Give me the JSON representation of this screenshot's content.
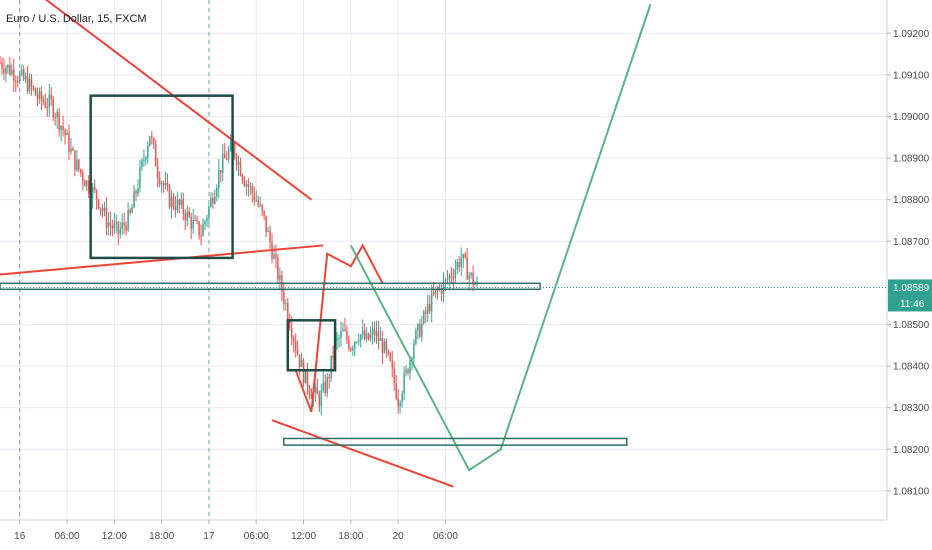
{
  "header": {
    "symbol_title": "Euro / U.S. Dollar, 15, FXCM"
  },
  "colors": {
    "background": "#ffffff",
    "grid": "#e6e9ef",
    "separator": "#6fa6a1",
    "up_candle": "#3aa897",
    "down_candle": "#ef5350",
    "drawing_red": "#ef4338",
    "drawing_green": "#58b483",
    "box_dark": "#1e4d47",
    "zone_teal": "#2b6e66",
    "price_badge": "#30a08f",
    "axis_text": "#4a4a4a"
  },
  "chart_data": {
    "type": "candlestick",
    "instrument": "Euro / U.S. Dollar",
    "timeframe": "15",
    "source": "FXCM",
    "x_tick_labels": [
      "16",
      "06:00",
      "12:00",
      "18:00",
      "17",
      "06:00",
      "12:00",
      "18:00",
      "20",
      "06:00"
    ],
    "y_tick_labels": [
      "1.09200",
      "1.09100",
      "1.09000",
      "1.08900",
      "1.08800",
      "1.08700",
      "1.08500",
      "1.08400",
      "1.08300",
      "1.08200",
      "1.08100"
    ],
    "y_tick_values": [
      1.092,
      1.091,
      1.09,
      1.089,
      1.088,
      1.087,
      1.085,
      1.084,
      1.083,
      1.082,
      1.081
    ],
    "ylim": [
      1.0803,
      1.0928
    ],
    "x_time_hours": {
      "start": -2.5,
      "end": 110,
      "tick_hours": [
        0,
        6,
        12,
        18,
        24,
        30,
        36,
        42,
        48,
        54
      ]
    },
    "session_separators_hours": [
      0,
      24
    ],
    "current_price": {
      "label": "1.08589",
      "value": 1.08589
    },
    "countdown": "11:46",
    "series_close_path": [
      [
        -2.5,
        1.0913
      ],
      [
        -1,
        1.0911
      ],
      [
        1,
        1.0908
      ],
      [
        2.5,
        1.0904
      ],
      [
        4,
        1.0903
      ],
      [
        5.5,
        1.0897
      ],
      [
        7,
        1.0889
      ],
      [
        8.5,
        1.0884
      ],
      [
        10,
        1.088
      ],
      [
        11,
        1.0875
      ],
      [
        12.5,
        1.0872
      ],
      [
        14,
        1.0876
      ],
      [
        15.5,
        1.0888
      ],
      [
        16.5,
        1.0896
      ],
      [
        17.5,
        1.0887
      ],
      [
        19,
        1.088
      ],
      [
        20.5,
        1.0878
      ],
      [
        22,
        1.0874
      ],
      [
        23,
        1.0872
      ],
      [
        24,
        1.0878
      ],
      [
        25.5,
        1.0888
      ],
      [
        27,
        1.0893
      ],
      [
        28.5,
        1.0885
      ],
      [
        30,
        1.088
      ],
      [
        31,
        1.0875
      ],
      [
        32,
        1.0868
      ],
      [
        33,
        1.086
      ],
      [
        34,
        1.0853
      ],
      [
        35,
        1.0845
      ],
      [
        36,
        1.0838
      ],
      [
        37,
        1.0834
      ],
      [
        38,
        1.0832
      ],
      [
        39,
        1.0836
      ],
      [
        40,
        1.0845
      ],
      [
        41,
        1.0848
      ],
      [
        42,
        1.0845
      ],
      [
        43,
        1.0848
      ],
      [
        44,
        1.0846
      ],
      [
        45,
        1.0848
      ],
      [
        46,
        1.0845
      ],
      [
        47,
        1.084
      ],
      [
        48,
        1.0832
      ],
      [
        49,
        1.0838
      ],
      [
        50,
        1.0846
      ],
      [
        51,
        1.085
      ],
      [
        52,
        1.0855
      ],
      [
        53,
        1.0858
      ],
      [
        54,
        1.086
      ],
      [
        55,
        1.0863
      ],
      [
        56,
        1.0866
      ],
      [
        57,
        1.0862
      ],
      [
        58,
        1.0859
      ]
    ],
    "drawings": {
      "trendlines_red": [
        {
          "from": [
            2,
            1.093
          ],
          "to": [
            37,
            1.088
          ]
        },
        {
          "from": [
            -2.5,
            1.0862
          ],
          "to": [
            38.5,
            1.0869
          ]
        },
        {
          "from": [
            32,
            1.0827
          ],
          "to": [
            55,
            1.0811
          ]
        }
      ],
      "path_red": [
        [
          35,
          1.0839
        ],
        [
          37,
          1.0829
        ],
        [
          39,
          1.0867
        ],
        [
          42,
          1.0864
        ],
        [
          43.5,
          1.0869
        ],
        [
          46,
          1.086
        ]
      ],
      "path_green": [
        [
          42,
          1.0869
        ],
        [
          57,
          1.0815
        ],
        [
          61,
          1.082
        ],
        [
          80,
          1.0927
        ]
      ],
      "boxes_dark": [
        {
          "x0": 9,
          "x1": 27,
          "y_top": 1.0905,
          "y_bottom": 1.0866
        },
        {
          "x0": 34,
          "x1": 40,
          "y_top": 1.0851,
          "y_bottom": 1.0839
        }
      ],
      "zones_teal": [
        {
          "x0": -2.5,
          "x1": 66,
          "y_top": 1.08599,
          "y_bottom": 1.08586
        },
        {
          "x0": 33.5,
          "x1": 77,
          "y_top": 1.08226,
          "y_bottom": 1.0821
        }
      ]
    }
  }
}
